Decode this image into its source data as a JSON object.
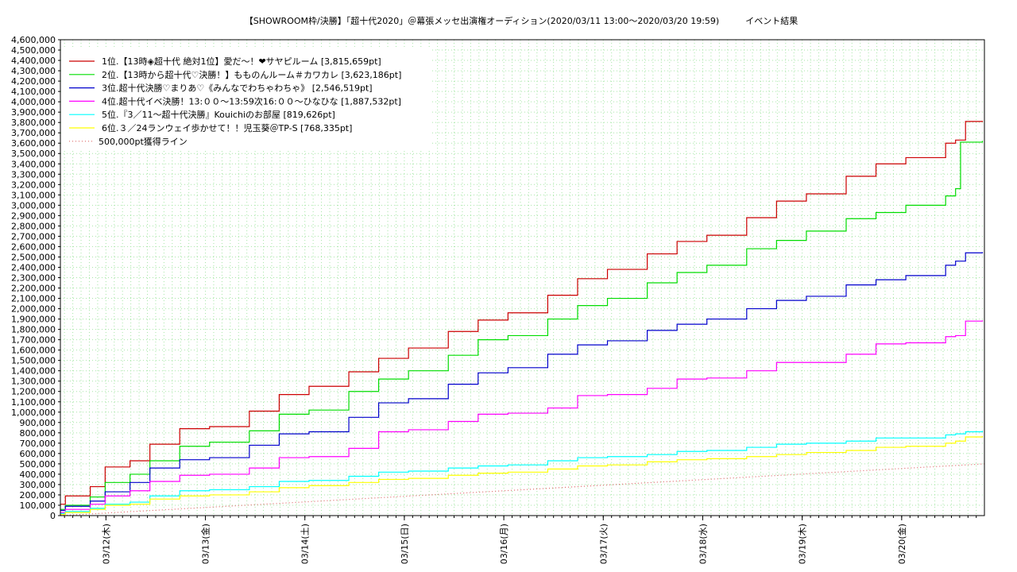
{
  "chart_data": {
    "type": "line",
    "title": "【SHOWROOM枠/決勝】「超十代2020」＠幕張メッセ出演権オーディション(2020/03/11 13:00～2020/03/20 19:59)　　　イベント結果",
    "xlabel": "",
    "ylabel": "",
    "ylim": [
      0,
      4600000
    ],
    "yticks": [
      0,
      100000,
      200000,
      300000,
      400000,
      500000,
      600000,
      700000,
      800000,
      900000,
      1000000,
      1100000,
      1200000,
      1300000,
      1400000,
      1500000,
      1600000,
      1700000,
      1800000,
      1900000,
      2000000,
      2100000,
      2200000,
      2300000,
      2400000,
      2500000,
      2600000,
      2700000,
      2800000,
      2900000,
      3000000,
      3100000,
      3200000,
      3300000,
      3400000,
      3500000,
      3600000,
      3700000,
      3800000,
      3900000,
      4000000,
      4100000,
      4200000,
      4300000,
      4400000,
      4500000,
      4600000
    ],
    "ytick_labels": [
      "0",
      "100,000",
      "200,000",
      "300,000",
      "400,000",
      "500,000",
      "600,000",
      "700,000",
      "800,000",
      "900,000",
      "1,000,000",
      "1,100,000",
      "1,200,000",
      "1,300,000",
      "1,400,000",
      "1,500,000",
      "1,600,000",
      "1,700,000",
      "1,800,000",
      "1,900,000",
      "2,000,000",
      "2,100,000",
      "2,200,000",
      "2,300,000",
      "2,400,000",
      "2,500,000",
      "2,600,000",
      "2,700,000",
      "2,800,000",
      "2,900,000",
      "3,000,000",
      "3,100,000",
      "3,200,000",
      "3,300,000",
      "3,400,000",
      "3,500,000",
      "3,600,000",
      "3,700,000",
      "3,800,000",
      "3,900,000",
      "4,000,000",
      "4,100,000",
      "4,200,000",
      "4,300,000",
      "4,400,000",
      "4,500,000",
      "4,600,000"
    ],
    "xlim": [
      0,
      9.29
    ],
    "xticks": [
      0.458,
      1.458,
      2.458,
      3.458,
      4.458,
      5.458,
      6.458,
      7.458,
      8.458
    ],
    "xtick_labels": [
      "03/12(木)",
      "03/13(金)",
      "03/14(土)",
      "03/15(日)",
      "03/16(月)",
      "03/17(火)",
      "03/18(水)",
      "03/19(木)",
      "03/20(金)"
    ],
    "grid": true,
    "legend_position": "top-left",
    "series": [
      {
        "name": "1位.【13時◈超十代 絶対1位】愛だ～！❤サヤピルーム [3,815,659pt]",
        "color": "#cc0000",
        "step": true,
        "x": [
          0,
          0.05,
          0.3,
          0.45,
          0.7,
          0.9,
          1.2,
          1.5,
          1.9,
          2.2,
          2.5,
          2.9,
          3.2,
          3.5,
          3.9,
          4.2,
          4.5,
          4.9,
          5.2,
          5.5,
          5.9,
          6.2,
          6.5,
          6.9,
          7.2,
          7.5,
          7.9,
          8.2,
          8.5,
          8.9,
          9.0,
          9.1,
          9.27
        ],
        "y": [
          110000,
          190000,
          280000,
          470000,
          530000,
          690000,
          840000,
          860000,
          1010000,
          1170000,
          1250000,
          1390000,
          1520000,
          1620000,
          1780000,
          1890000,
          1960000,
          2130000,
          2290000,
          2380000,
          2530000,
          2650000,
          2710000,
          2880000,
          3040000,
          3110000,
          3280000,
          3400000,
          3460000,
          3600000,
          3630000,
          3810000,
          3815659
        ]
      },
      {
        "name": "2位.【13時から超十代♡決勝！】もものんルーム＃カワカレ [3,623,186pt]",
        "color": "#00dd00",
        "step": true,
        "x": [
          0,
          0.05,
          0.3,
          0.45,
          0.7,
          0.9,
          1.2,
          1.5,
          1.9,
          2.2,
          2.5,
          2.9,
          3.2,
          3.5,
          3.9,
          4.2,
          4.5,
          4.9,
          5.2,
          5.5,
          5.9,
          6.2,
          6.5,
          6.9,
          7.2,
          7.5,
          7.9,
          8.2,
          8.5,
          8.9,
          9.0,
          9.05,
          9.27
        ],
        "y": [
          60000,
          100000,
          180000,
          320000,
          400000,
          530000,
          670000,
          710000,
          820000,
          980000,
          1020000,
          1200000,
          1320000,
          1400000,
          1550000,
          1700000,
          1740000,
          1900000,
          2030000,
          2100000,
          2250000,
          2350000,
          2420000,
          2580000,
          2660000,
          2750000,
          2870000,
          2930000,
          3000000,
          3090000,
          3160000,
          3610000,
          3623186
        ]
      },
      {
        "name": "3位.超十代決勝♡まりあ♡《みんなでわちゃわちゃ》 [2,546,519pt]",
        "color": "#0000cc",
        "step": true,
        "x": [
          0,
          0.05,
          0.3,
          0.45,
          0.7,
          0.9,
          1.2,
          1.5,
          1.9,
          2.2,
          2.5,
          2.9,
          3.2,
          3.5,
          3.9,
          4.2,
          4.5,
          4.9,
          5.2,
          5.5,
          5.9,
          6.2,
          6.5,
          6.9,
          7.2,
          7.5,
          7.9,
          8.2,
          8.5,
          8.9,
          9.0,
          9.1,
          9.27
        ],
        "y": [
          50000,
          90000,
          140000,
          230000,
          320000,
          460000,
          540000,
          560000,
          680000,
          790000,
          810000,
          950000,
          1090000,
          1130000,
          1270000,
          1380000,
          1430000,
          1560000,
          1650000,
          1690000,
          1790000,
          1850000,
          1900000,
          2000000,
          2080000,
          2120000,
          2230000,
          2280000,
          2320000,
          2420000,
          2460000,
          2540000,
          2546519
        ]
      },
      {
        "name": "4位.超十代イベ決勝！13:００～13:59次16:００～ひなひな [1,887,532pt]",
        "color": "#ff00ff",
        "step": true,
        "x": [
          0,
          0.05,
          0.3,
          0.45,
          0.7,
          0.9,
          1.2,
          1.5,
          1.9,
          2.2,
          2.5,
          2.9,
          3.2,
          3.5,
          3.9,
          4.2,
          4.5,
          4.9,
          5.2,
          5.5,
          5.9,
          6.2,
          6.5,
          6.9,
          7.2,
          7.5,
          7.9,
          8.2,
          8.5,
          8.9,
          9.0,
          9.1,
          9.27
        ],
        "y": [
          30000,
          60000,
          110000,
          190000,
          240000,
          330000,
          390000,
          400000,
          460000,
          560000,
          570000,
          650000,
          810000,
          830000,
          910000,
          980000,
          990000,
          1040000,
          1160000,
          1170000,
          1230000,
          1320000,
          1330000,
          1400000,
          1480000,
          1480000,
          1560000,
          1660000,
          1670000,
          1730000,
          1740000,
          1880000,
          1887532
        ]
      },
      {
        "name": "5位.『3／11～超十代決勝』Kouichiのお部屋 [819,626pt]",
        "color": "#00ffff",
        "step": true,
        "x": [
          0,
          0.05,
          0.3,
          0.45,
          0.7,
          0.9,
          1.2,
          1.5,
          1.9,
          2.2,
          2.5,
          2.9,
          3.2,
          3.5,
          3.9,
          4.2,
          4.5,
          4.9,
          5.2,
          5.5,
          5.9,
          6.2,
          6.5,
          6.9,
          7.2,
          7.5,
          7.9,
          8.2,
          8.5,
          8.9,
          9.0,
          9.1,
          9.27
        ],
        "y": [
          20000,
          40000,
          70000,
          110000,
          130000,
          190000,
          240000,
          250000,
          280000,
          330000,
          340000,
          380000,
          420000,
          430000,
          460000,
          480000,
          490000,
          530000,
          560000,
          570000,
          590000,
          620000,
          630000,
          660000,
          690000,
          700000,
          720000,
          750000,
          750000,
          780000,
          790000,
          810000,
          819626
        ]
      },
      {
        "name": "6位.３／24ランウェイ歩かせて！！児玉葵＠TP-S [768,335pt]",
        "color": "#ffff00",
        "step": true,
        "x": [
          0,
          0.05,
          0.3,
          0.45,
          0.7,
          0.9,
          1.2,
          1.5,
          1.9,
          2.2,
          2.5,
          2.9,
          3.2,
          3.5,
          3.9,
          4.2,
          4.5,
          4.9,
          5.2,
          5.5,
          5.9,
          6.2,
          6.5,
          6.9,
          7.2,
          7.5,
          7.9,
          8.2,
          8.5,
          8.9,
          9.0,
          9.1,
          9.27
        ],
        "y": [
          10000,
          30000,
          60000,
          100000,
          110000,
          160000,
          190000,
          200000,
          230000,
          270000,
          290000,
          320000,
          350000,
          360000,
          390000,
          410000,
          420000,
          450000,
          480000,
          490000,
          520000,
          540000,
          550000,
          570000,
          590000,
          610000,
          630000,
          660000,
          670000,
          700000,
          720000,
          760000,
          768335
        ]
      },
      {
        "name": "500,000pt獲得ライン",
        "color": "#dd6666",
        "dotted": true,
        "step": false,
        "x": [
          0,
          9.29
        ],
        "y": [
          0,
          500000
        ]
      }
    ]
  }
}
